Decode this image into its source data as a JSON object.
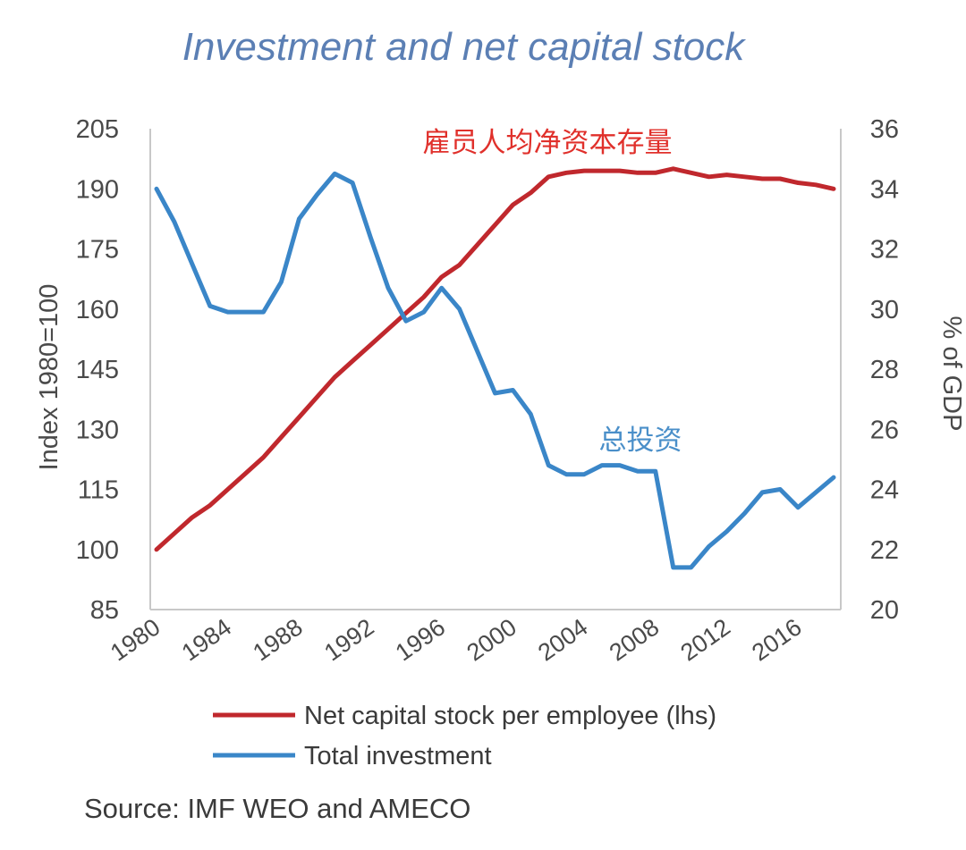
{
  "chart_data": {
    "type": "line",
    "title": "Investment and net capital stock",
    "ylabel": "Index 1980=100",
    "y2label": "% of GDP",
    "ylim": [
      85,
      205
    ],
    "y_ticks": [
      205,
      190,
      175,
      160,
      145,
      130,
      115,
      100,
      85
    ],
    "y2lim": [
      20,
      36
    ],
    "y2_ticks": [
      36,
      34,
      32,
      30,
      28,
      26,
      24,
      22,
      20
    ],
    "x_ticks": [
      1980,
      1984,
      1988,
      1992,
      1996,
      2000,
      2004,
      2008,
      2012,
      2016
    ],
    "x": [
      1980,
      1981,
      1982,
      1983,
      1984,
      1985,
      1986,
      1987,
      1988,
      1989,
      1990,
      1991,
      1992,
      1993,
      1994,
      1995,
      1996,
      1997,
      1998,
      1999,
      2000,
      2001,
      2002,
      2003,
      2004,
      2005,
      2006,
      2007,
      2008,
      2009,
      2010,
      2011,
      2012,
      2013,
      2014,
      2015,
      2016,
      2017,
      2018
    ],
    "series": [
      {
        "name": "Net capital stock per employee (lhs)",
        "axis": "left",
        "color": "#c0282d",
        "values": [
          100,
          104,
          108,
          111,
          115,
          119,
          123,
          128,
          133,
          138,
          143,
          147,
          151,
          155,
          159,
          163,
          168,
          171,
          176,
          181,
          186,
          189,
          193,
          194,
          194.5,
          194.5,
          194.5,
          194,
          194,
          195,
          194,
          193,
          193.5,
          193,
          192.5,
          192.5,
          191.5,
          191,
          190
        ]
      },
      {
        "name": "Total investment",
        "axis": "right",
        "color": "#3a86c8",
        "values": [
          34.0,
          32.9,
          31.5,
          30.1,
          29.9,
          29.9,
          29.9,
          30.9,
          33.0,
          33.8,
          34.5,
          34.2,
          32.4,
          30.7,
          29.6,
          29.9,
          30.7,
          30.0,
          28.6,
          27.2,
          27.3,
          26.5,
          24.8,
          24.5,
          24.5,
          24.8,
          24.8,
          24.6,
          24.6,
          21.4,
          21.4,
          22.1,
          22.6,
          23.2,
          23.9,
          24.0,
          23.4,
          23.9,
          24.4
        ]
      }
    ],
    "annotations": [
      {
        "text": "雇员人均净资本存量",
        "series": "Net capital stock per employee (lhs)"
      },
      {
        "text": "总投资",
        "series": "Total investment"
      }
    ],
    "grid": false,
    "legend_position": "bottom-left"
  },
  "source": "Source: IMF WEO and AMECO"
}
